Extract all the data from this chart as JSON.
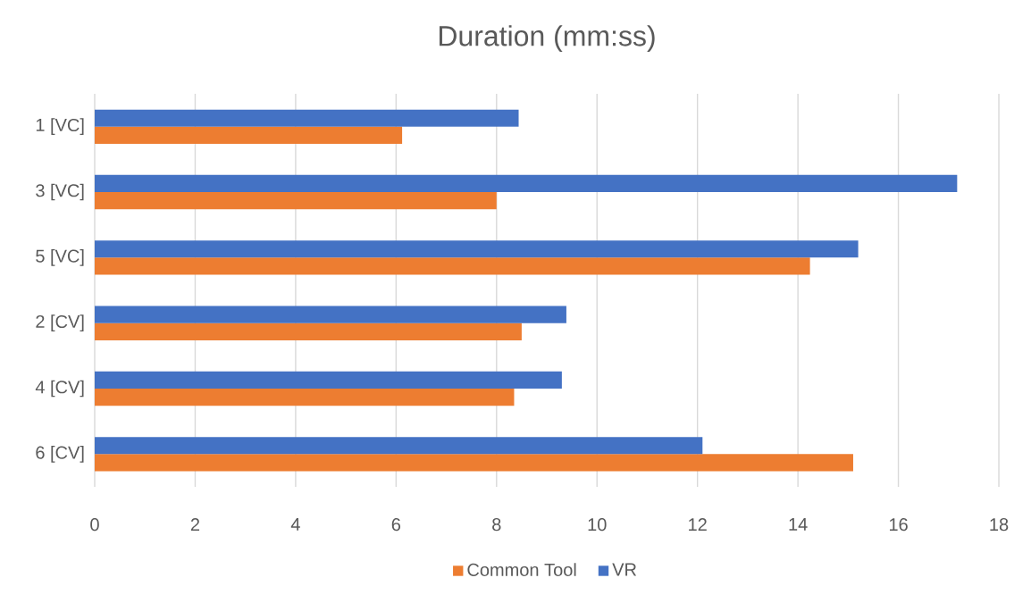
{
  "chart_data": {
    "type": "bar",
    "orientation": "horizontal",
    "title": "Duration (mm:ss)",
    "categories": [
      "1 [VC]",
      "3 [VC]",
      "5 [VC]",
      "2 [CV]",
      "4 [CV]",
      "6 [CV]"
    ],
    "series": [
      {
        "name": "Common Tool",
        "color": "#ed7d31",
        "values": [
          6.12,
          8.0,
          14.24,
          8.5,
          8.35,
          15.1
        ]
      },
      {
        "name": "VR",
        "color": "#4472c4",
        "values": [
          8.44,
          17.17,
          15.2,
          9.39,
          9.3,
          12.1
        ]
      }
    ],
    "xlim": [
      0,
      18
    ],
    "xticks": [
      0,
      2,
      4,
      6,
      8,
      10,
      12,
      14,
      16,
      18
    ],
    "grid": "x",
    "legend": "bottom"
  }
}
